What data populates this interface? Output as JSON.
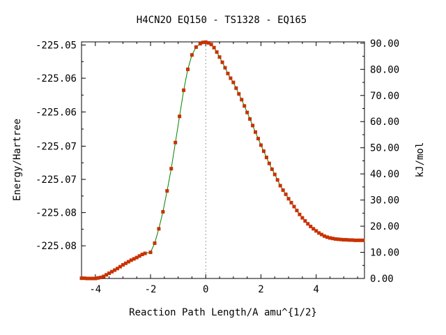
{
  "chart_data": {
    "type": "line",
    "title": "H4CN2O   EQ150 - TS1328 - EQ165",
    "xlabel": "Reaction Path Length/A amu^{1/2}",
    "ylabel_left": "Energy/Hartree",
    "ylabel_right": "kJ/mol",
    "xlim": [
      -4.5,
      5.75
    ],
    "ylim_right": [
      0,
      90.5
    ],
    "x_ticks": [
      -4,
      -2,
      0,
      2,
      4
    ],
    "x_tick_labels": [
      "-4",
      "-2",
      "0",
      "2",
      "4"
    ],
    "left_ticks_kj": [
      12.5,
      25.2,
      37.9,
      50.6,
      63.7,
      76.6,
      89.3
    ],
    "left_tick_labels": [
      "-225.08",
      "-225.08",
      "-225.07",
      "-225.07",
      "-225.06",
      "-225.06",
      "-225.05"
    ],
    "right_ticks": [
      0,
      10,
      20,
      30,
      40,
      50,
      60,
      70,
      80,
      90
    ],
    "right_tick_labels": [
      "0.00",
      "10.00",
      "20.00",
      "30.00",
      "40.00",
      "50.00",
      "60.00",
      "70.00",
      "80.00",
      "90.00"
    ],
    "ts_marker_x": 0,
    "grid": false,
    "line_color": "#008000",
    "marker_color": "#c83200",
    "series": [
      {
        "x": [
          -4.5,
          -4.4,
          -4.3,
          -4.2,
          -4.1,
          -4.0,
          -3.9,
          -3.8,
          -3.7,
          -3.6,
          -3.5,
          -3.4,
          -3.3,
          -3.2,
          -3.1,
          -3.0,
          -2.9,
          -2.8,
          -2.7,
          -2.6,
          -2.5,
          -2.4,
          -2.3,
          -2.2,
          -2.0,
          -1.85,
          -1.7,
          -1.55,
          -1.4,
          -1.25,
          -1.1,
          -0.95,
          -0.8,
          -0.65,
          -0.5,
          -0.35,
          -0.2,
          -0.1,
          0.0,
          0.1,
          0.2,
          0.3,
          0.4,
          0.5,
          0.6,
          0.7,
          0.8,
          0.9,
          1.0,
          1.1,
          1.2,
          1.3,
          1.4,
          1.5,
          1.6,
          1.7,
          1.8,
          1.9,
          2.0,
          2.1,
          2.2,
          2.3,
          2.4,
          2.5,
          2.6,
          2.7,
          2.8,
          2.9,
          3.0,
          3.1,
          3.2,
          3.3,
          3.4,
          3.5,
          3.6,
          3.7,
          3.8,
          3.9,
          4.0,
          4.1,
          4.2,
          4.3,
          4.4,
          4.5,
          4.6,
          4.7,
          4.8,
          4.9,
          5.0,
          5.1,
          5.2,
          5.3,
          5.4,
          5.5,
          5.6,
          5.7
        ],
        "y": [
          0.1,
          0.1,
          0.0,
          0.0,
          0.0,
          0.0,
          0.2,
          0.4,
          0.8,
          1.4,
          2.0,
          2.6,
          3.2,
          3.8,
          4.5,
          5.2,
          5.8,
          6.4,
          7.0,
          7.5,
          8.0,
          8.6,
          9.2,
          9.6,
          10.0,
          13.5,
          19.0,
          25.5,
          33.5,
          42.0,
          52.0,
          62.0,
          72.0,
          80.0,
          85.5,
          88.5,
          89.8,
          90.3,
          90.4,
          90.1,
          89.5,
          88.3,
          86.6,
          84.7,
          82.7,
          80.6,
          78.4,
          76.6,
          75.0,
          72.8,
          70.6,
          68.4,
          66.0,
          63.5,
          61.0,
          58.5,
          56.0,
          53.5,
          51.0,
          48.7,
          46.3,
          44.0,
          41.8,
          39.8,
          37.7,
          35.5,
          33.8,
          32.2,
          30.5,
          29.0,
          27.5,
          26.0,
          24.5,
          23.2,
          22.0,
          20.9,
          19.9,
          19.0,
          18.2,
          17.4,
          16.8,
          16.2,
          15.8,
          15.5,
          15.3,
          15.1,
          15.0,
          14.9,
          14.8,
          14.8,
          14.7,
          14.7,
          14.6,
          14.6,
          14.6,
          14.6
        ]
      }
    ]
  }
}
